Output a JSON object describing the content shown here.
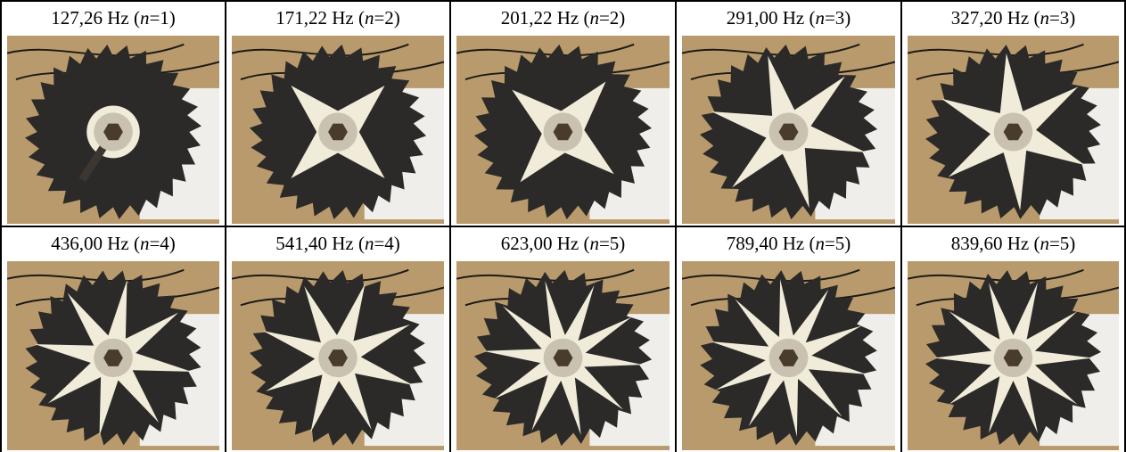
{
  "panels": [
    {
      "freq": "127,26 Hz",
      "n": "1"
    },
    {
      "freq": "171,22 Hz",
      "n": "2"
    },
    {
      "freq": "201,22 Hz",
      "n": "2"
    },
    {
      "freq": "291,00 Hz",
      "n": "3"
    },
    {
      "freq": "327,20 Hz",
      "n": "3"
    },
    {
      "freq": "436,00 Hz",
      "n": "4"
    },
    {
      "freq": "541,40 Hz",
      "n": "4"
    },
    {
      "freq": "623,00 Hz",
      "n": "5"
    },
    {
      "freq": "789,40 Hz",
      "n": "5"
    },
    {
      "freq": "839,60 Hz",
      "n": "5"
    }
  ],
  "n_symbol": "n",
  "colors": {
    "blade": "#2b2a28",
    "sand": "#f1ecd9",
    "background": "#b99a6c",
    "hub": "#c9c2b0",
    "nut": "#4a3c2c"
  }
}
